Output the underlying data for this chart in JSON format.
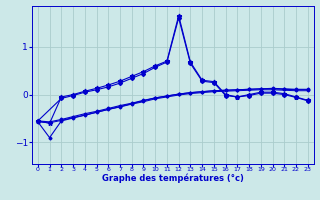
{
  "xlabel": "Graphe des températures (°c)",
  "background_color": "#cce8e8",
  "grid_color": "#aacccc",
  "line_color": "#0000cc",
  "xlim": [
    -0.5,
    23.5
  ],
  "ylim": [
    -1.45,
    1.85
  ],
  "yticks": [
    -1,
    0,
    1
  ],
  "xticks": [
    0,
    1,
    2,
    3,
    4,
    5,
    6,
    7,
    8,
    9,
    10,
    11,
    12,
    13,
    14,
    15,
    16,
    17,
    18,
    19,
    20,
    21,
    22,
    23
  ],
  "curve1_x": [
    0,
    1,
    2,
    3,
    4,
    5,
    6,
    7,
    8,
    9,
    10,
    11,
    12,
    13,
    14,
    15,
    16,
    17,
    18,
    19,
    20,
    21,
    22,
    23
  ],
  "curve1_y": [
    -0.55,
    -0.6,
    -0.05,
    0.0,
    0.07,
    0.13,
    0.2,
    0.28,
    0.38,
    0.48,
    0.6,
    0.7,
    1.65,
    0.68,
    0.3,
    0.27,
    0.0,
    -0.05,
    0.0,
    0.05,
    0.05,
    0.02,
    -0.05,
    -0.12
  ],
  "curve2_x": [
    0,
    2,
    3,
    4,
    5,
    6,
    7,
    8,
    9,
    10,
    11,
    12,
    13,
    14,
    15,
    16,
    17,
    18,
    19,
    20,
    21,
    22,
    23
  ],
  "curve2_y": [
    -0.55,
    -0.08,
    -0.02,
    0.05,
    0.1,
    0.16,
    0.24,
    0.34,
    0.44,
    0.57,
    0.68,
    1.6,
    0.65,
    0.28,
    0.25,
    -0.02,
    -0.05,
    -0.02,
    0.03,
    0.03,
    0.0,
    -0.06,
    -0.13
  ],
  "curve3_x": [
    0,
    1,
    2,
    3,
    4,
    5,
    6,
    7,
    8,
    9,
    10,
    11,
    12,
    13,
    14,
    15,
    16,
    17,
    18,
    19,
    20,
    21,
    22,
    23
  ],
  "curve3_y": [
    -0.55,
    -0.57,
    -0.52,
    -0.46,
    -0.4,
    -0.35,
    -0.29,
    -0.23,
    -0.18,
    -0.12,
    -0.07,
    -0.03,
    0.01,
    0.04,
    0.06,
    0.08,
    0.09,
    0.1,
    0.11,
    0.12,
    0.12,
    0.11,
    0.1,
    0.1
  ],
  "curve4_x": [
    0,
    1,
    2,
    3,
    4,
    5,
    6,
    7,
    8,
    9,
    10,
    11,
    12,
    13,
    14,
    15,
    16,
    17,
    18,
    19,
    20,
    21,
    22,
    23
  ],
  "curve4_y": [
    -0.57,
    -0.59,
    -0.54,
    -0.48,
    -0.43,
    -0.37,
    -0.31,
    -0.26,
    -0.2,
    -0.15,
    -0.09,
    -0.05,
    -0.01,
    0.02,
    0.04,
    0.06,
    0.07,
    0.08,
    0.09,
    0.1,
    0.1,
    0.09,
    0.08,
    0.08
  ],
  "curve5_x": [
    0,
    1,
    2,
    3,
    4,
    5,
    6,
    7,
    8,
    9,
    10,
    11,
    12,
    13,
    14,
    15,
    16,
    17,
    18,
    19,
    20,
    21,
    22,
    23
  ],
  "curve5_y": [
    -0.57,
    -0.9,
    -0.55,
    -0.49,
    -0.43,
    -0.37,
    -0.31,
    -0.25,
    -0.19,
    -0.13,
    -0.07,
    -0.03,
    0.01,
    0.04,
    0.06,
    0.08,
    0.09,
    0.1,
    0.11,
    0.12,
    0.13,
    0.12,
    0.11,
    0.11
  ]
}
